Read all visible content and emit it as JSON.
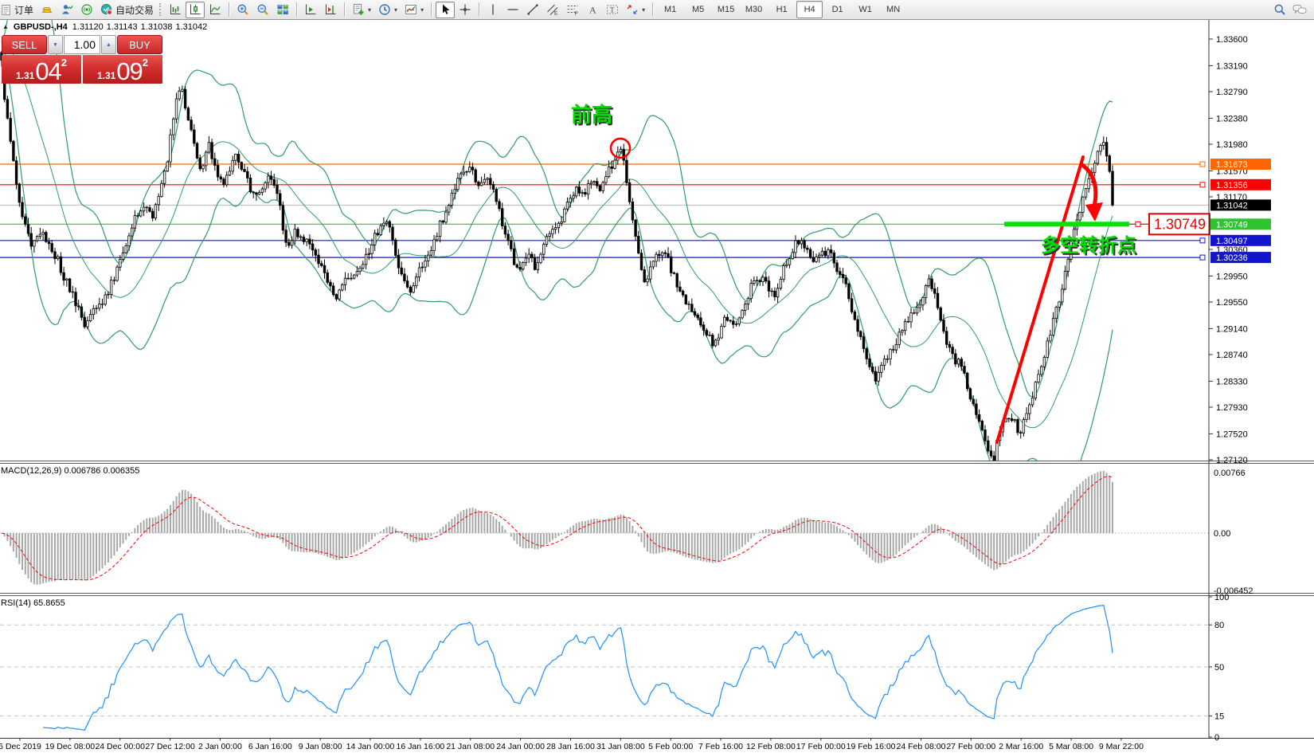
{
  "toolbar": {
    "new_order_label": "订单",
    "autotrade_label": "自动交易",
    "timeframes": [
      "M1",
      "M5",
      "M15",
      "M30",
      "H1",
      "H4",
      "D1",
      "W1",
      "MN"
    ],
    "active_timeframe": "H4"
  },
  "symbol_bar": {
    "symbol_period": "GBPUSD-,H4",
    "open": "1.31120",
    "high": "1.31143",
    "low": "1.31038",
    "close": "1.31042"
  },
  "one_click": {
    "sell_label": "SELL",
    "buy_label": "BUY",
    "volume": "1.00",
    "sell_price_small": "1.31",
    "sell_price_big": "04",
    "sell_price_sup": "2",
    "buy_price_small": "1.31",
    "buy_price_big": "09",
    "buy_price_sup": "2"
  },
  "chart_data": {
    "type": "candlestick",
    "symbol": "GBPUSD",
    "period": "H4",
    "ylim": [
      1.2712,
      1.336
    ],
    "grid": false,
    "price_axis_ticks": [
      "1.33600",
      "1.33190",
      "1.32790",
      "1.32380",
      "1.31980",
      "1.31570",
      "1.31170",
      "1.30360",
      "1.29950",
      "1.29550",
      "1.29140",
      "1.28740",
      "1.28330",
      "1.27930",
      "1.27520",
      "1.27120"
    ],
    "time_axis_labels": [
      "6 Dec 2019",
      "19 Dec 08:00",
      "24 Dec 00:00",
      "27 Dec 12:00",
      "2 Jan 00:00",
      "6 Jan 16:00",
      "9 Jan 08:00",
      "14 Jan 00:00",
      "16 Jan 16:00",
      "21 Jan 08:00",
      "24 Jan 00:00",
      "28 Jan 16:00",
      "31 Jan 08:00",
      "5 Feb 00:00",
      "7 Feb 16:00",
      "12 Feb 08:00",
      "17 Feb 00:00",
      "19 Feb 16:00",
      "24 Feb 08:00",
      "27 Feb 00:00",
      "2 Mar 16:00",
      "5 Mar 08:00",
      "9 Mar 22:00"
    ],
    "levels": [
      {
        "price": 1.31673,
        "label": "1.31673",
        "color": "#FF6600"
      },
      {
        "price": 1.31356,
        "label": "1.31356",
        "color": "#FF0000"
      },
      {
        "price": 1.30749,
        "label": "1.30749",
        "color": "#2FC42F"
      },
      {
        "price": 1.30497,
        "label": "1.30497",
        "color": "#1414CC"
      },
      {
        "price": 1.30236,
        "label": "1.30236",
        "color": "#1414CC"
      }
    ],
    "bid_line": {
      "price": 1.31042,
      "label": "1.31042",
      "line_color": "#B8B8B8",
      "label_bg": "#000000"
    },
    "indicators": {
      "bollinger": {
        "period": 20,
        "deviation": 2,
        "color": "#2E9E62"
      },
      "macd": {
        "label": "MACD(12,26,9)",
        "value_main": "0.006786",
        "value_signal": "0.006355",
        "axis": [
          "0.00766",
          "0.00",
          "-0.006452"
        ],
        "histogram_color": "#A8A8A8",
        "signal_color": "#FF0000"
      },
      "rsi": {
        "label": "RSI(14)",
        "value": "65.8655",
        "axis": [
          "100",
          "80",
          "50",
          "15",
          "0"
        ],
        "dashed_levels": [
          80,
          50,
          15
        ],
        "color": "#1E90FF"
      }
    },
    "annotations": {
      "prev_high_text": {
        "text": "前高",
        "color": "#00DC00"
      },
      "prev_high_circle": {
        "shape": "circle",
        "color": "#FF0000",
        "price": 1.3192
      },
      "turning_point_text": {
        "text": "多空转折点",
        "color": "#00DC00"
      },
      "support_bar": {
        "shape": "thick-line",
        "color": "#00E400",
        "price": 1.30749
      },
      "price_callout": {
        "text": "1.30749",
        "color": "#E60000"
      },
      "trend_arrow": {
        "shape": "arrow",
        "color": "#FF0000",
        "from_price": 1.2768,
        "to_price": 1.3155
      }
    },
    "price_path": [
      [
        0,
        1.3348
      ],
      [
        6,
        1.327
      ],
      [
        14,
        1.32
      ],
      [
        22,
        1.312
      ],
      [
        30,
        1.3078
      ],
      [
        40,
        1.304
      ],
      [
        52,
        1.3065
      ],
      [
        62,
        1.304
      ],
      [
        72,
        1.302
      ],
      [
        82,
        1.299
      ],
      [
        92,
        1.2965
      ],
      [
        105,
        1.2918
      ],
      [
        118,
        1.295
      ],
      [
        130,
        1.2958
      ],
      [
        142,
        1.299
      ],
      [
        155,
        1.303
      ],
      [
        168,
        1.308
      ],
      [
        180,
        1.3105
      ],
      [
        190,
        1.3085
      ],
      [
        200,
        1.312
      ],
      [
        210,
        1.3175
      ],
      [
        222,
        1.327
      ],
      [
        228,
        1.3282
      ],
      [
        236,
        1.324
      ],
      [
        244,
        1.32
      ],
      [
        252,
        1.316
      ],
      [
        262,
        1.32
      ],
      [
        272,
        1.3155
      ],
      [
        282,
        1.314
      ],
      [
        295,
        1.3185
      ],
      [
        305,
        1.316
      ],
      [
        318,
        1.312
      ],
      [
        330,
        1.3135
      ],
      [
        342,
        1.315
      ],
      [
        352,
        1.31
      ],
      [
        360,
        1.3035
      ],
      [
        370,
        1.3065
      ],
      [
        380,
        1.3055
      ],
      [
        390,
        1.304
      ],
      [
        400,
        1.302
      ],
      [
        412,
        1.2985
      ],
      [
        422,
        1.2965
      ],
      [
        432,
        1.2985
      ],
      [
        442,
        1.3
      ],
      [
        452,
        1.301
      ],
      [
        462,
        1.3025
      ],
      [
        472,
        1.306
      ],
      [
        482,
        1.308
      ],
      [
        492,
        1.306
      ],
      [
        502,
        1.3
      ],
      [
        512,
        1.297
      ],
      [
        522,
        1.299
      ],
      [
        532,
        1.3015
      ],
      [
        545,
        1.305
      ],
      [
        558,
        1.309
      ],
      [
        570,
        1.313
      ],
      [
        580,
        1.3155
      ],
      [
        592,
        1.316
      ],
      [
        602,
        1.313
      ],
      [
        612,
        1.3145
      ],
      [
        622,
        1.312
      ],
      [
        632,
        1.307
      ],
      [
        642,
        1.303
      ],
      [
        652,
        1.3
      ],
      [
        662,
        1.303
      ],
      [
        672,
        1.301
      ],
      [
        682,
        1.304
      ],
      [
        692,
        1.306
      ],
      [
        702,
        1.307
      ],
      [
        712,
        1.3105
      ],
      [
        722,
        1.313
      ],
      [
        732,
        1.312
      ],
      [
        742,
        1.314
      ],
      [
        752,
        1.3125
      ],
      [
        762,
        1.315
      ],
      [
        772,
        1.3175
      ],
      [
        779,
        1.3192
      ],
      [
        786,
        1.315
      ],
      [
        794,
        1.3085
      ],
      [
        802,
        1.303
      ],
      [
        810,
        1.2988
      ],
      [
        818,
        1.3012
      ],
      [
        826,
        1.3028
      ],
      [
        836,
        1.303
      ],
      [
        846,
        1.2995
      ],
      [
        856,
        1.2965
      ],
      [
        866,
        1.2945
      ],
      [
        876,
        1.2925
      ],
      [
        886,
        1.291
      ],
      [
        896,
        1.2885
      ],
      [
        904,
        1.2905
      ],
      [
        912,
        1.2935
      ],
      [
        922,
        1.2918
      ],
      [
        932,
        1.294
      ],
      [
        942,
        1.2975
      ],
      [
        952,
        1.2995
      ],
      [
        962,
        1.2985
      ],
      [
        972,
        1.296
      ],
      [
        982,
        1.3
      ],
      [
        992,
        1.303
      ],
      [
        1002,
        1.3048
      ],
      [
        1012,
        1.3038
      ],
      [
        1022,
        1.302
      ],
      [
        1032,
        1.3028
      ],
      [
        1042,
        1.303
      ],
      [
        1052,
        1.3
      ],
      [
        1062,
        1.298
      ],
      [
        1072,
        1.293
      ],
      [
        1082,
        1.289
      ],
      [
        1092,
        1.286
      ],
      [
        1100,
        1.283
      ],
      [
        1110,
        1.2862
      ],
      [
        1120,
        1.288
      ],
      [
        1130,
        1.2905
      ],
      [
        1140,
        1.2928
      ],
      [
        1150,
        1.2945
      ],
      [
        1158,
        1.2962
      ],
      [
        1166,
        1.2985
      ],
      [
        1174,
        1.297
      ],
      [
        1182,
        1.293
      ],
      [
        1192,
        1.288
      ],
      [
        1200,
        1.2862
      ],
      [
        1208,
        1.2858
      ],
      [
        1216,
        1.282
      ],
      [
        1224,
        1.279
      ],
      [
        1232,
        1.2758
      ],
      [
        1240,
        1.273
      ],
      [
        1248,
        1.2715
      ],
      [
        1256,
        1.2758
      ],
      [
        1264,
        1.2772
      ],
      [
        1272,
        1.278
      ],
      [
        1280,
        1.2752
      ],
      [
        1288,
        1.2778
      ],
      [
        1298,
        1.282
      ],
      [
        1308,
        1.286
      ],
      [
        1318,
        1.2905
      ],
      [
        1328,
        1.295
      ],
      [
        1338,
        1.3005
      ],
      [
        1348,
        1.306
      ],
      [
        1358,
        1.3105
      ],
      [
        1368,
        1.315
      ],
      [
        1378,
        1.3185
      ],
      [
        1386,
        1.3195
      ],
      [
        1392,
        1.316
      ],
      [
        1397,
        1.313
      ],
      [
        1400,
        1.31042
      ]
    ]
  }
}
